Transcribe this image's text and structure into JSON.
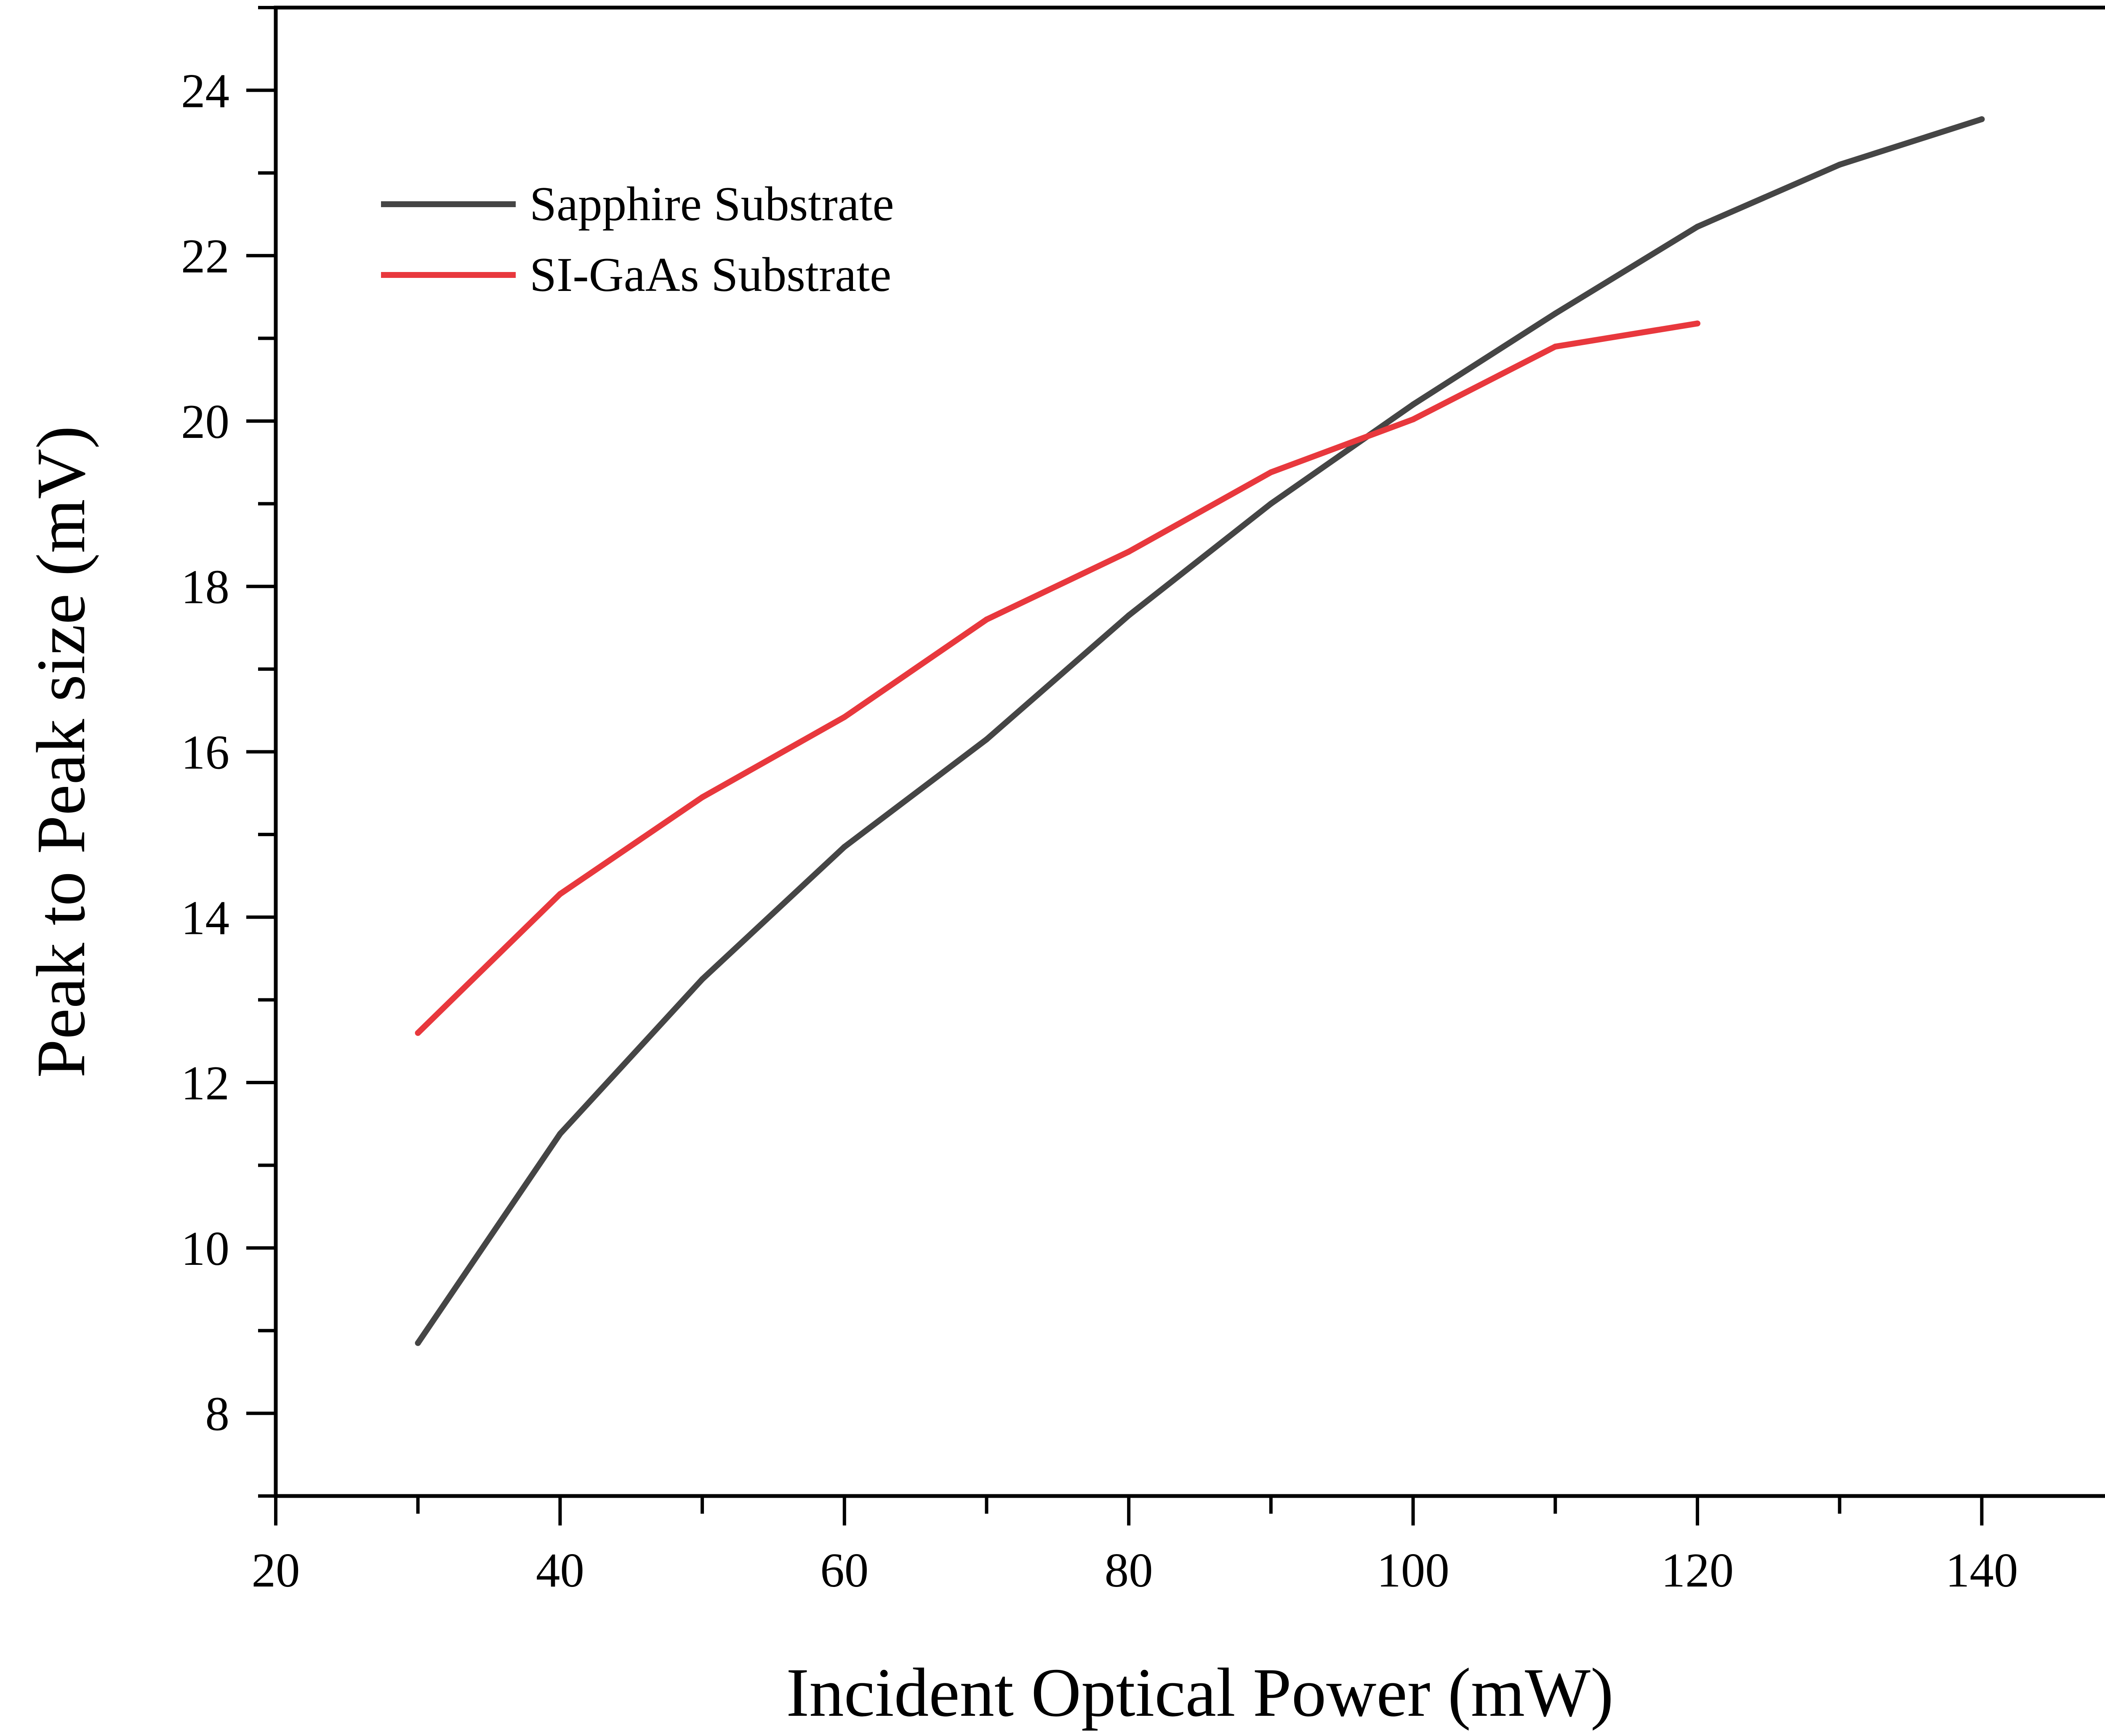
{
  "chart_data": {
    "type": "line",
    "xlabel": "Incident Optical Power (mW)",
    "ylabel": "Peak to Peak size (mV)",
    "xlim": [
      20,
      150
    ],
    "ylim": [
      7,
      25
    ],
    "x_ticks": [
      20,
      40,
      60,
      80,
      100,
      120,
      140
    ],
    "y_ticks": [
      8,
      10,
      12,
      14,
      16,
      18,
      20,
      22,
      24
    ],
    "x_tick_labels": [
      "20",
      "40",
      "60",
      "80",
      "100",
      "120",
      "140"
    ],
    "y_tick_labels": [
      "8",
      "10",
      "12",
      "14",
      "16",
      "18",
      "20",
      "22",
      "24"
    ],
    "x_minor_step": 10,
    "y_minor_step": 1,
    "grid": false,
    "legend_position": "top-left",
    "series": [
      {
        "name": "Sapphire Substrate",
        "color": "#454545",
        "x": [
          30,
          40,
          50,
          60,
          70,
          80,
          90,
          100,
          110,
          120,
          130,
          140
        ],
        "y": [
          8.85,
          11.38,
          13.25,
          14.85,
          16.15,
          17.65,
          19.0,
          20.2,
          21.3,
          22.35,
          23.1,
          23.65
        ]
      },
      {
        "name": "SI-GaAs Substrate",
        "color": "#e8383d",
        "x": [
          30,
          40,
          50,
          60,
          70,
          80,
          90,
          100,
          110,
          120
        ],
        "y": [
          12.6,
          14.28,
          15.45,
          16.42,
          17.6,
          18.42,
          19.38,
          20.02,
          20.9,
          21.18
        ]
      }
    ]
  }
}
